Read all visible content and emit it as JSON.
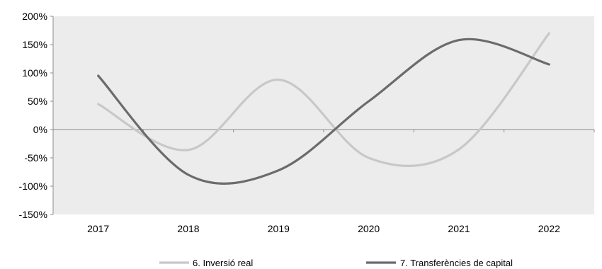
{
  "chart_data": {
    "type": "line",
    "title": "",
    "xlabel": "",
    "ylabel": "",
    "categories": [
      "2017",
      "2018",
      "2019",
      "2020",
      "2021",
      "2022"
    ],
    "ylim": [
      -150,
      200
    ],
    "yticks": [
      -150,
      -100,
      -50,
      0,
      50,
      100,
      150,
      200
    ],
    "ytick_labels": [
      "-150%",
      "-100%",
      "-50%",
      "0%",
      "50%",
      "100%",
      "150%",
      "200%"
    ],
    "smooth": true,
    "grid": false,
    "plot_background": "#ececec",
    "legend_position": "bottom",
    "series": [
      {
        "name": "6. Inversió real",
        "color": "#c8c8c8",
        "values": [
          45,
          -36,
          88,
          -50,
          -35,
          170
        ]
      },
      {
        "name": "7. Transferències de capital",
        "color": "#6b6b6b",
        "values": [
          95,
          -80,
          -72,
          50,
          158,
          115
        ]
      }
    ]
  }
}
